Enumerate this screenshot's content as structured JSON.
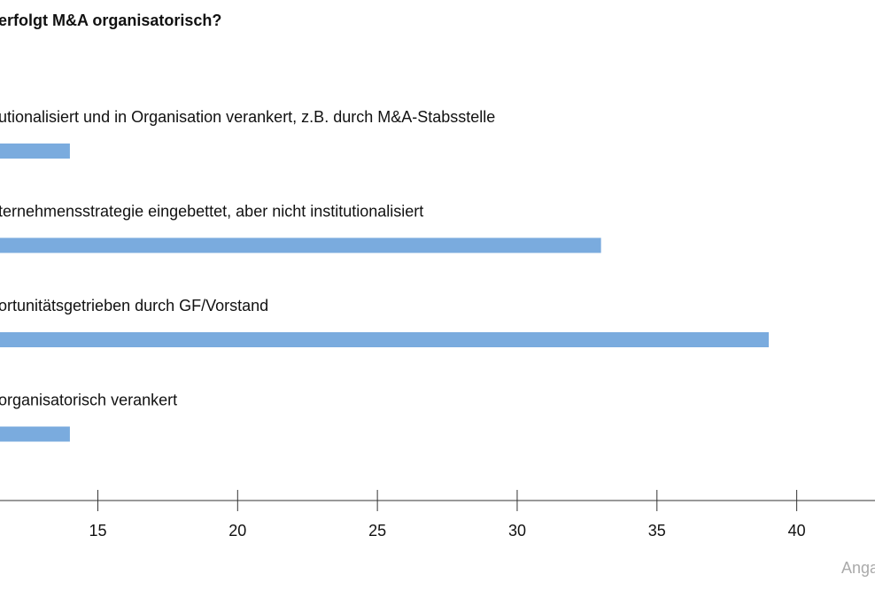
{
  "chart_data": {
    "type": "bar",
    "orientation": "horizontal",
    "title": "erfolgt M&A organisatorisch?",
    "categories": [
      "utionalisiert und in Organisation verankert, z.B. durch M&A-Stabsstelle",
      "ternehmensstrategie eingebettet, aber nicht institutionalisiert",
      "ortunitätsgetrieben durch GF/Vorstand",
      "organisatorisch verankert"
    ],
    "values": [
      14,
      33,
      39,
      14
    ],
    "color": "#7aabde",
    "xlim": [
      11.5,
      42.8
    ],
    "xticks": [
      15,
      20,
      25,
      30,
      35,
      40
    ],
    "note": "Anga"
  }
}
